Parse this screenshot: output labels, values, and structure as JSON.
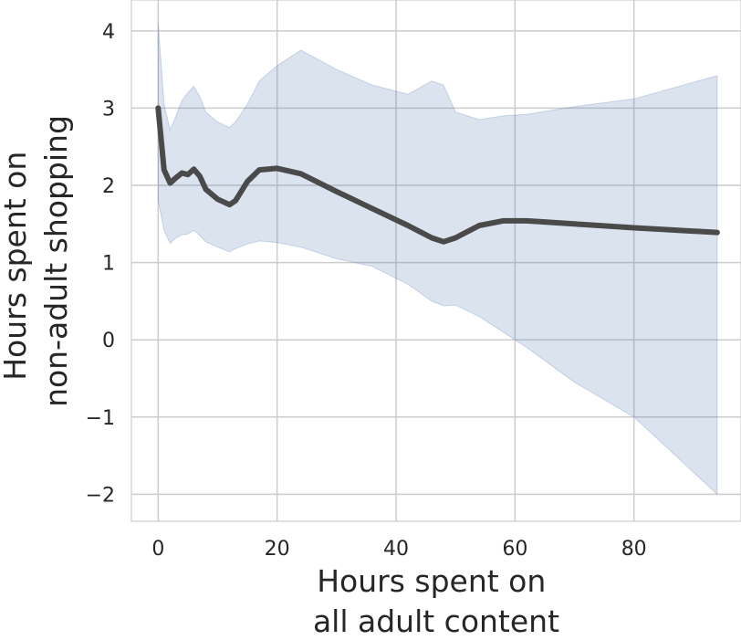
{
  "chart_data": {
    "type": "line",
    "xlabel": [
      "Hours spent on",
      "all adult content"
    ],
    "ylabel": [
      "Hours spent on",
      "non-adult shopping"
    ],
    "xlim": [
      -4.5,
      98
    ],
    "ylim": [
      -2.35,
      4.4
    ],
    "x_ticks": [
      0,
      20,
      40,
      60,
      80
    ],
    "y_ticks": [
      -2,
      -1,
      0,
      1,
      2,
      3,
      4
    ],
    "x_tick_labels": [
      "0",
      "20",
      "40",
      "60",
      "80"
    ],
    "y_tick_labels": [
      "−2",
      "−1",
      "0",
      "1",
      "2",
      "3",
      "4"
    ],
    "grid": true,
    "series": [
      {
        "line_color": "#4a4a4a",
        "band_color": "#4c72b0",
        "x": [
          0,
          1,
          2,
          3,
          4,
          5,
          6,
          7,
          8,
          10,
          12,
          13,
          15,
          17,
          20,
          24,
          30,
          36,
          42,
          46,
          48,
          50,
          54,
          58,
          62,
          70,
          80,
          94
        ],
        "y": [
          3.0,
          2.2,
          2.03,
          2.1,
          2.16,
          2.14,
          2.21,
          2.12,
          1.95,
          1.82,
          1.75,
          1.8,
          2.05,
          2.2,
          2.22,
          2.15,
          1.92,
          1.7,
          1.48,
          1.32,
          1.27,
          1.32,
          1.48,
          1.54,
          1.54,
          1.5,
          1.45,
          1.39
        ],
        "upper": [
          4.1,
          3.05,
          2.72,
          2.9,
          3.1,
          3.2,
          3.28,
          3.15,
          2.95,
          2.82,
          2.75,
          2.82,
          3.05,
          3.35,
          3.55,
          3.75,
          3.5,
          3.3,
          3.18,
          3.35,
          3.3,
          2.95,
          2.85,
          2.9,
          2.92,
          3.02,
          3.12,
          3.42
        ],
        "lower": [
          1.8,
          1.42,
          1.25,
          1.32,
          1.36,
          1.37,
          1.42,
          1.35,
          1.27,
          1.2,
          1.14,
          1.18,
          1.24,
          1.28,
          1.26,
          1.2,
          1.05,
          0.95,
          0.72,
          0.5,
          0.44,
          0.45,
          0.3,
          0.1,
          -0.1,
          -0.55,
          -1.0,
          -2.0
        ]
      }
    ]
  }
}
